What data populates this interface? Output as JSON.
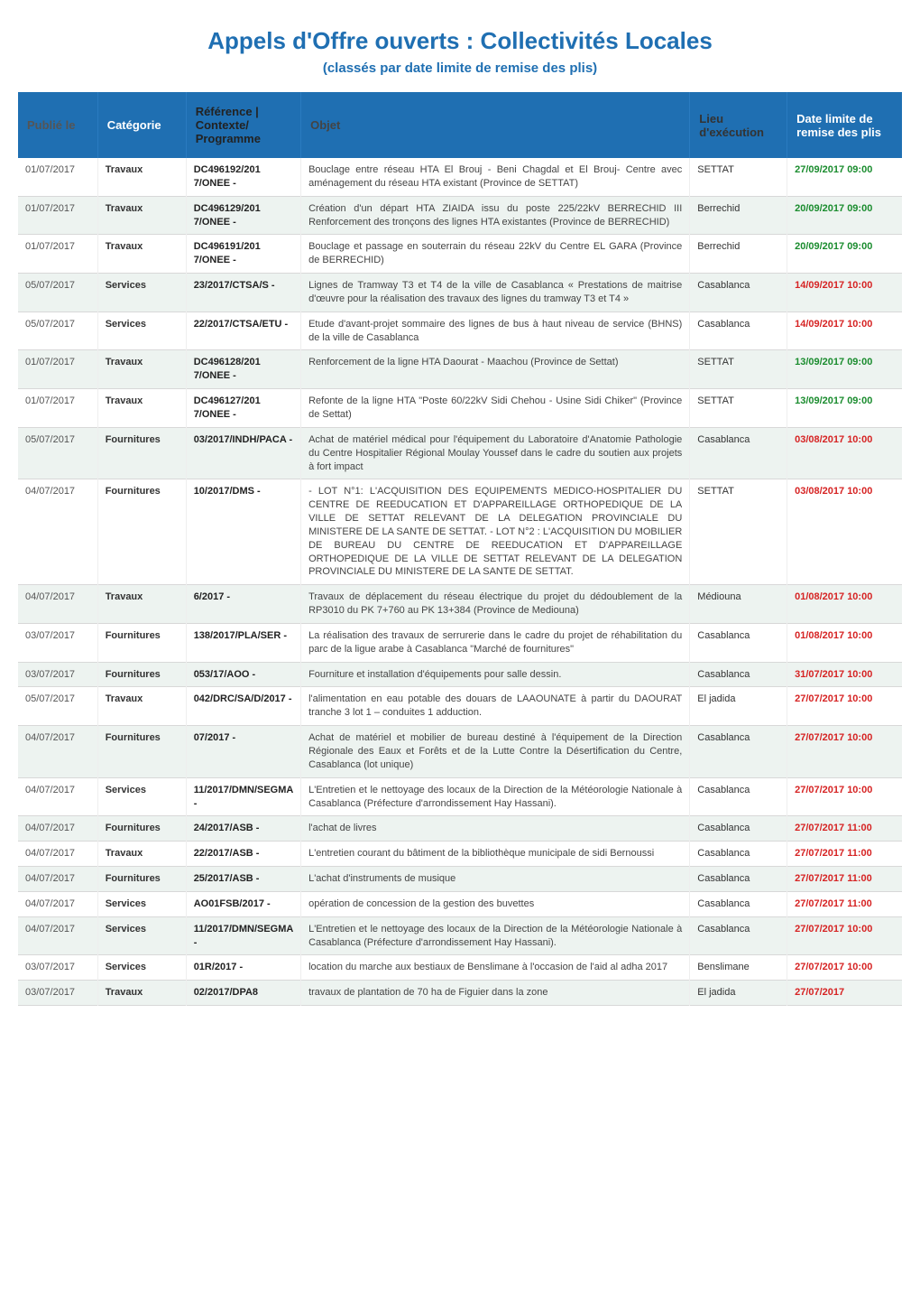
{
  "title": "Appels d'Offre ouverts : Collectivités Locales",
  "subtitle": "(classés par date limite de remise des plis)",
  "columns": {
    "publie": "Publié le",
    "categorie": "Catégorie",
    "reference": "Référence | Contexte/ Programme",
    "objet": "Objet",
    "lieu": "Lieu d'exécution",
    "datelimite": "Date limite de remise des plis"
  },
  "rows": [
    {
      "alt": false,
      "publie": "01/07/2017",
      "categorie": "Travaux",
      "reference": "DC496192/201 7/ONEE -",
      "objet": "Bouclage entre réseau HTA El Brouj - Beni Chagdal et El Brouj- Centre avec aménagement du réseau HTA existant (Province de SETTAT)",
      "lieu": "SETTAT",
      "date": "27/09/2017 09:00",
      "dateColor": "grn"
    },
    {
      "alt": true,
      "publie": "01/07/2017",
      "categorie": "Travaux",
      "reference": "DC496129/201 7/ONEE -",
      "objet": "Création d'un départ HTA ZIAIDA issu du poste 225/22kV BERRECHID III Renforcement des tronçons des lignes HTA existantes (Province de BERRECHID)",
      "lieu": "Berrechid",
      "date": "20/09/2017 09:00",
      "dateColor": "grn"
    },
    {
      "alt": false,
      "publie": "01/07/2017",
      "categorie": "Travaux",
      "reference": "DC496191/201 7/ONEE -",
      "objet": "Bouclage et passage en souterrain du réseau 22kV du Centre EL GARA (Province de BERRECHID)",
      "lieu": "Berrechid",
      "date": "20/09/2017 09:00",
      "dateColor": "grn"
    },
    {
      "alt": true,
      "publie": "05/07/2017",
      "categorie": "Services",
      "reference": "23/2017/CTSA/S -",
      "objet": "Lignes de Tramway T3 et T4 de la ville de Casablanca « Prestations de maitrise d'œuvre pour la réalisation des travaux des lignes du tramway T3 et T4 »",
      "lieu": "Casablanca",
      "date": "14/09/2017 10:00",
      "dateColor": "red"
    },
    {
      "alt": false,
      "publie": "05/07/2017",
      "categorie": "Services",
      "reference": "22/2017/CTSA/ETU -",
      "objet": "Etude d'avant-projet sommaire des lignes de bus à haut niveau de service (BHNS) de la ville de Casablanca",
      "lieu": "Casablanca",
      "date": "14/09/2017 10:00",
      "dateColor": "red"
    },
    {
      "alt": true,
      "publie": "01/07/2017",
      "categorie": "Travaux",
      "reference": "DC496128/201 7/ONEE -",
      "objet": "Renforcement de la ligne HTA Daourat - Maachou (Province de Settat)",
      "lieu": "SETTAT",
      "date": "13/09/2017 09:00",
      "dateColor": "grn"
    },
    {
      "alt": false,
      "publie": "01/07/2017",
      "categorie": "Travaux",
      "reference": "DC496127/201 7/ONEE -",
      "objet": "Refonte de la ligne HTA \"Poste 60/22kV Sidi Chehou - Usine Sidi Chiker\" (Province de Settat)",
      "lieu": "SETTAT",
      "date": "13/09/2017 09:00",
      "dateColor": "grn"
    },
    {
      "alt": true,
      "publie": "05/07/2017",
      "categorie": "Fournitures",
      "reference": "03/2017/INDH/PACA -",
      "objet": "Achat de matériel médical pour l'équipement du Laboratoire d'Anatomie Pathologie du Centre Hospitalier Régional Moulay Youssef dans le cadre du soutien aux projets à fort impact",
      "lieu": "Casablanca",
      "date": "03/08/2017 10:00",
      "dateColor": "red"
    },
    {
      "alt": false,
      "publie": "04/07/2017",
      "categorie": "Fournitures",
      "reference": "10/2017/DMS -",
      "objet": "- LOT N°1: L'ACQUISITION DES EQUIPEMENTS MEDICO-HOSPITALIER DU CENTRE DE REEDUCATION ET D'APPAREILLAGE ORTHOPEDIQUE DE LA VILLE DE SETTAT RELEVANT DE LA DELEGATION PROVINCIALE DU MINISTERE DE LA SANTE DE SETTAT. - LOT N°2 : L'ACQUISITION DU MOBILIER DE BUREAU DU CENTRE DE REEDUCATION ET D'APPAREILLAGE ORTHOPEDIQUE DE LA VILLE DE SETTAT RELEVANT DE LA DELEGATION PROVINCIALE DU MINISTERE DE LA SANTE DE SETTAT.",
      "lieu": "SETTAT",
      "date": "03/08/2017 10:00",
      "dateColor": "red"
    },
    {
      "alt": true,
      "publie": "04/07/2017",
      "categorie": "Travaux",
      "reference": "6/2017 -",
      "objet": "Travaux de déplacement du réseau électrique du projet du dédoublement de la RP3010 du PK 7+760 au PK 13+384 (Province de Mediouna)",
      "lieu": "Médiouna",
      "date": "01/08/2017 10:00",
      "dateColor": "red"
    },
    {
      "alt": false,
      "publie": "03/07/2017",
      "categorie": "Fournitures",
      "reference": "138/2017/PLA/SER -",
      "objet": "La réalisation des travaux de serrurerie dans le cadre du projet de réhabilitation du parc de la ligue arabe à Casablanca \"Marché de fournitures\"",
      "lieu": "Casablanca",
      "date": "01/08/2017 10:00",
      "dateColor": "red"
    },
    {
      "alt": true,
      "publie": "03/07/2017",
      "categorie": "Fournitures",
      "reference": "053/17/AOO -",
      "objet": "Fourniture et installation d'équipements pour salle dessin.",
      "lieu": "Casablanca",
      "date": "31/07/2017 10:00",
      "dateColor": "red"
    },
    {
      "alt": false,
      "publie": "05/07/2017",
      "categorie": "Travaux",
      "reference": "042/DRC/SA/D/2017 -",
      "objet": "l'alimentation en eau potable des douars de LAAOUNATE à partir du DAOURAT tranche 3 lot 1 – conduites 1 adduction.",
      "lieu": "El jadida",
      "date": "27/07/2017 10:00",
      "dateColor": "red"
    },
    {
      "alt": true,
      "publie": "04/07/2017",
      "categorie": "Fournitures",
      "reference": "07/2017 -",
      "objet": "Achat de matériel et mobilier de bureau destiné à l'équipement de la Direction Régionale des Eaux et Forêts et de la Lutte Contre la Désertification du Centre, Casablanca (lot unique)",
      "lieu": "Casablanca",
      "date": "27/07/2017 10:00",
      "dateColor": "red"
    },
    {
      "alt": false,
      "publie": "04/07/2017",
      "categorie": "Services",
      "reference": "11/2017/DMN/SEGMA -",
      "objet": "L'Entretien et le nettoyage des locaux de la Direction de la Météorologie Nationale à Casablanca (Préfecture d'arrondissement Hay Hassani).",
      "lieu": "Casablanca",
      "date": "27/07/2017 10:00",
      "dateColor": "red"
    },
    {
      "alt": true,
      "publie": "04/07/2017",
      "categorie": "Fournitures",
      "reference": "24/2017/ASB -",
      "objet": "l'achat de livres",
      "lieu": "Casablanca",
      "date": "27/07/2017 11:00",
      "dateColor": "red"
    },
    {
      "alt": false,
      "publie": "04/07/2017",
      "categorie": "Travaux",
      "reference": "22/2017/ASB -",
      "objet": "L'entretien courant du bâtiment de la bibliothèque municipale de sidi Bernoussi",
      "lieu": "Casablanca",
      "date": "27/07/2017 11:00",
      "dateColor": "red"
    },
    {
      "alt": true,
      "publie": "04/07/2017",
      "categorie": "Fournitures",
      "reference": "25/2017/ASB -",
      "objet": "L'achat d'instruments de musique",
      "lieu": "Casablanca",
      "date": "27/07/2017 11:00",
      "dateColor": "red"
    },
    {
      "alt": false,
      "publie": "04/07/2017",
      "categorie": "Services",
      "reference": "AO01FSB/2017 -",
      "objet": "opération de concession de la gestion des buvettes",
      "lieu": "Casablanca",
      "date": "27/07/2017 11:00",
      "dateColor": "red"
    },
    {
      "alt": true,
      "publie": "04/07/2017",
      "categorie": "Services",
      "reference": "11/2017/DMN/SEGMA -",
      "objet": "L'Entretien et le nettoyage des locaux de la Direction de la Météorologie Nationale à Casablanca (Préfecture d'arrondissement Hay Hassani).",
      "lieu": "Casablanca",
      "date": "27/07/2017 10:00",
      "dateColor": "red"
    },
    {
      "alt": false,
      "publie": "03/07/2017",
      "categorie": "Services",
      "reference": "01R/2017 -",
      "objet": "location du marche aux bestiaux de Benslimane à l'occasion de l'aid al adha 2017",
      "lieu": "Benslimane",
      "date": "27/07/2017 10:00",
      "dateColor": "red"
    },
    {
      "alt": true,
      "publie": "03/07/2017",
      "categorie": "Travaux",
      "reference": "02/2017/DPA8",
      "objet": "travaux de plantation de 70 ha de Figuier dans la zone",
      "lieu": "El jadida",
      "date": "27/07/2017",
      "dateColor": "red"
    }
  ]
}
